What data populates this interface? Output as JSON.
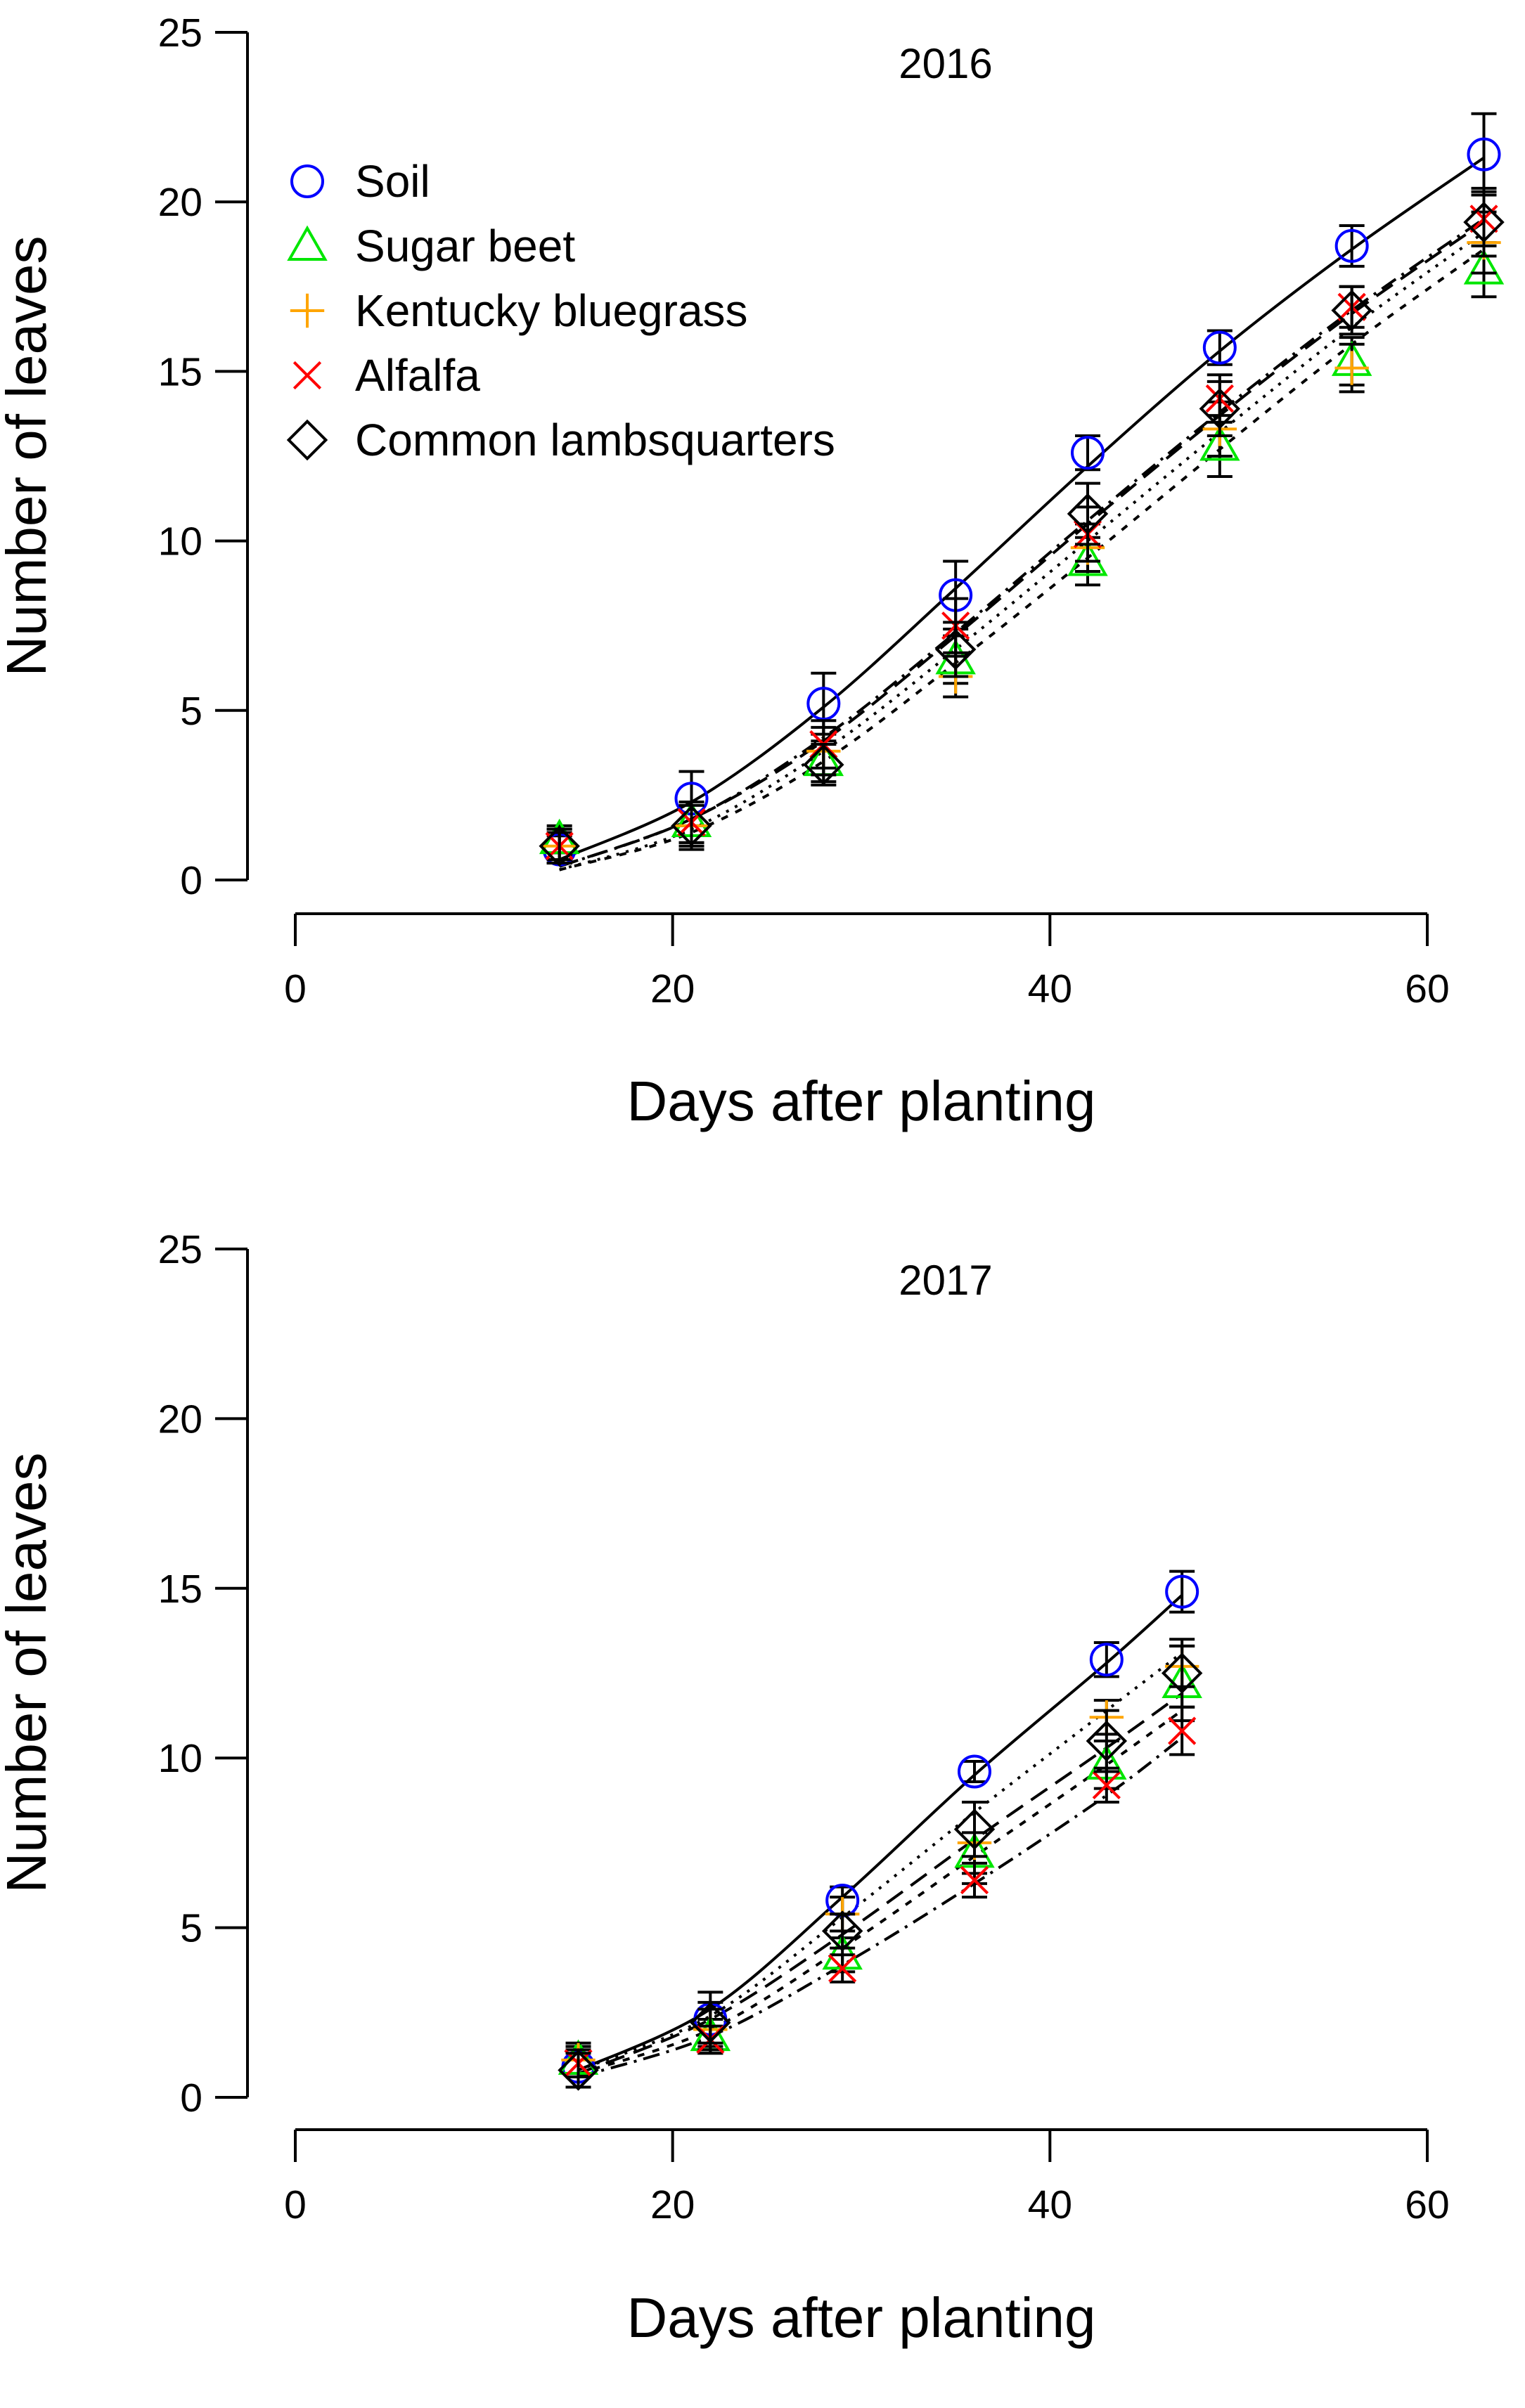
{
  "colors": {
    "Soil": "#0000ff",
    "Sugar beet": "#00e600",
    "Kentucky bluegrass": "#ffa500",
    "Alfalfa": "#ff0000",
    "Common lambsquarters": "#000000"
  },
  "markers": {
    "Soil": "circle",
    "Sugar beet": "triangle",
    "Kentucky bluegrass": "plus",
    "Alfalfa": "cross",
    "Common lambsquarters": "diamond"
  },
  "dashes": {
    "Soil": "",
    "Sugar beet": "10 12",
    "Kentucky bluegrass": "4 10",
    "Alfalfa": "24 10 4 10",
    "Common lambsquarters": "28 14"
  },
  "legend": {
    "placement": "top-left",
    "entries": [
      "Soil",
      "Sugar beet",
      "Kentucky bluegrass",
      "Alfalfa",
      "Common lambsquarters"
    ]
  },
  "chart_data": [
    {
      "type": "scatter",
      "title": "2016",
      "xlabel": "Days after planting",
      "ylabel": "Number of leaves",
      "xlim": [
        0,
        60
      ],
      "ylim": [
        0,
        25
      ],
      "xticks": [
        0,
        20,
        40,
        60
      ],
      "yticks": [
        0,
        5,
        10,
        15,
        20,
        25
      ],
      "grid": false,
      "x": [
        14,
        21,
        28,
        35,
        42,
        49,
        56,
        63
      ],
      "series": [
        {
          "name": "Soil",
          "values": [
            0.9,
            2.4,
            5.2,
            8.4,
            12.6,
            15.7,
            18.7,
            21.4
          ],
          "error": [
            0.4,
            0.8,
            0.9,
            1.0,
            0.5,
            0.5,
            0.6,
            1.2
          ],
          "fit": [
            0.6,
            2.3,
            5.1,
            8.6,
            12.2,
            15.6,
            18.6,
            21.3
          ]
        },
        {
          "name": "Sugar beet",
          "values": [
            1.2,
            1.7,
            3.5,
            6.5,
            9.4,
            12.8,
            15.3,
            18.0
          ],
          "error": [
            0.4,
            0.6,
            0.6,
            0.7,
            0.7,
            0.9,
            0.7,
            0.8
          ],
          "fit": [
            0.3,
            1.4,
            3.5,
            6.4,
            9.5,
            12.7,
            15.8,
            18.6
          ]
        },
        {
          "name": "Kentucky bluegrass",
          "values": [
            1.0,
            1.6,
            3.8,
            6.0,
            9.8,
            13.3,
            15.1,
            18.8
          ],
          "error": [
            0.5,
            0.6,
            0.7,
            0.6,
            0.7,
            0.8,
            0.7,
            0.9
          ],
          "fit": [
            0.3,
            1.5,
            3.8,
            6.8,
            10.0,
            13.2,
            16.3,
            19.1
          ]
        },
        {
          "name": "Alfalfa",
          "values": [
            1.0,
            1.7,
            4.0,
            7.5,
            10.2,
            14.2,
            16.9,
            19.5
          ],
          "error": [
            0.4,
            0.6,
            0.7,
            0.8,
            0.8,
            0.7,
            0.6,
            0.8
          ],
          "fit": [
            0.4,
            1.8,
            4.2,
            7.3,
            10.6,
            13.8,
            16.8,
            19.5
          ]
        },
        {
          "name": "Common lambsquarters",
          "values": [
            1.0,
            1.6,
            3.4,
            6.8,
            10.8,
            13.9,
            16.8,
            19.4
          ],
          "error": [
            0.5,
            0.7,
            0.6,
            0.8,
            0.9,
            0.8,
            0.7,
            1.0
          ],
          "fit": [
            0.4,
            1.8,
            4.1,
            7.2,
            10.5,
            13.7,
            16.7,
            19.4
          ]
        }
      ]
    },
    {
      "type": "scatter",
      "title": "2017",
      "xlabel": "Days after planting",
      "ylabel": "Number of leaves",
      "xlim": [
        0,
        60
      ],
      "ylim": [
        0,
        25
      ],
      "xticks": [
        0,
        20,
        40,
        60
      ],
      "yticks": [
        0,
        5,
        10,
        15,
        20,
        25
      ],
      "grid": false,
      "x": [
        15,
        22,
        29,
        36,
        43,
        47
      ],
      "series": [
        {
          "name": "Soil",
          "values": [
            0.9,
            2.3,
            5.8,
            9.6,
            12.9,
            14.9
          ],
          "error": [
            0.6,
            0.8,
            0.4,
            0.3,
            0.5,
            0.6
          ],
          "fit": [
            0.8,
            2.6,
            5.9,
            9.5,
            12.8,
            14.8
          ]
        },
        {
          "name": "Sugar beet",
          "values": [
            1.1,
            1.8,
            4.2,
            7.2,
            9.8,
            12.2
          ],
          "error": [
            0.4,
            0.5,
            0.5,
            0.6,
            0.7,
            1.1
          ],
          "fit": [
            0.7,
            2.0,
            4.4,
            7.1,
            9.8,
            11.4
          ]
        },
        {
          "name": "Kentucky bluegrass",
          "values": [
            1.1,
            2.0,
            5.4,
            7.5,
            11.2,
            12.7
          ],
          "error": [
            0.5,
            0.6,
            0.5,
            1.2,
            0.5,
            0.6
          ],
          "fit": [
            0.8,
            2.4,
            5.3,
            8.4,
            11.4,
            13.1
          ]
        },
        {
          "name": "Alfalfa",
          "values": [
            1.0,
            1.7,
            3.8,
            6.4,
            9.2,
            10.8
          ],
          "error": [
            0.4,
            0.4,
            0.4,
            0.5,
            0.5,
            0.7
          ],
          "fit": [
            0.6,
            1.8,
            3.9,
            6.3,
            8.9,
            10.6
          ]
        },
        {
          "name": "Common lambsquarters",
          "values": [
            0.8,
            2.2,
            4.9,
            7.9,
            10.5,
            12.5
          ],
          "error": [
            0.5,
            0.6,
            0.5,
            0.8,
            0.9,
            1.0
          ],
          "fit": [
            0.7,
            2.3,
            4.8,
            7.6,
            10.3,
            11.9
          ]
        }
      ]
    }
  ]
}
